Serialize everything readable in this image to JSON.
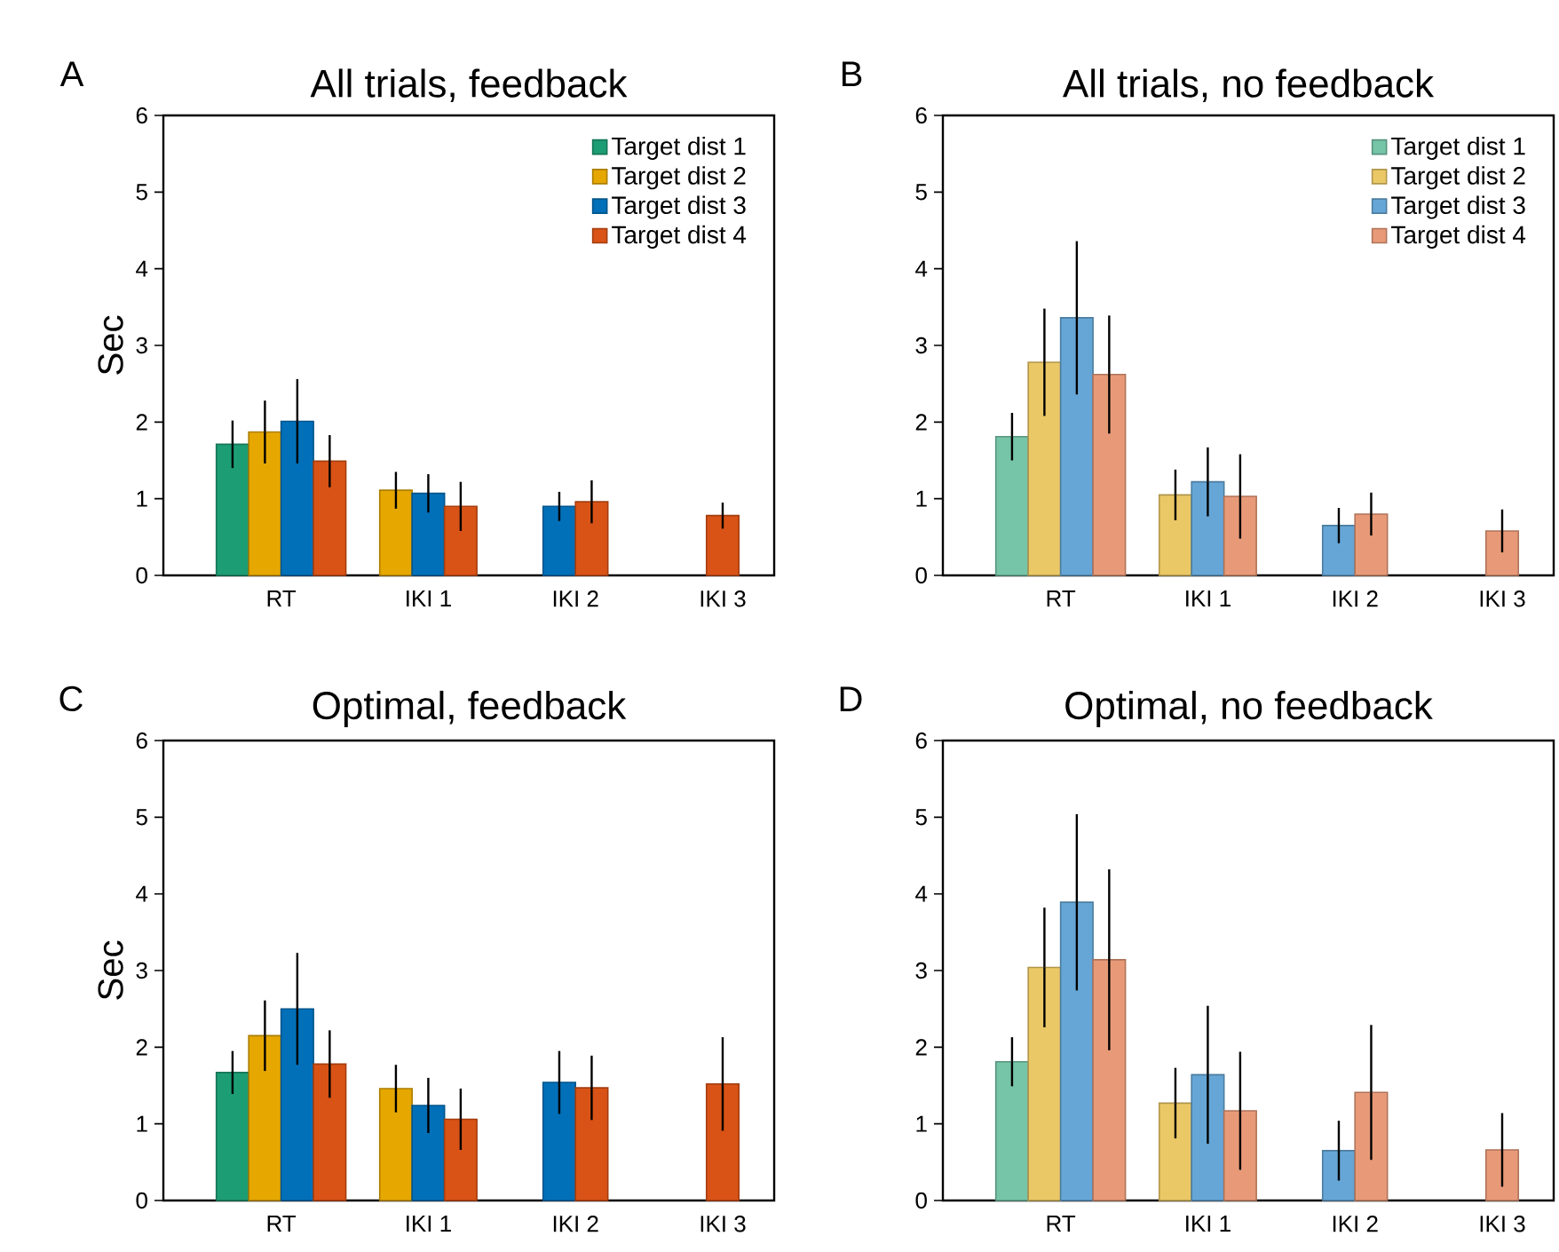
{
  "chart_data": [
    {
      "type": "bar",
      "title": "All trials, feedback",
      "ylabel": "Sec",
      "annotations": [
        "A"
      ],
      "categories": [
        "RT",
        "IKI 1",
        "IKI 2",
        "IKI 3"
      ],
      "ylim": [
        0,
        6
      ],
      "yticks": [
        0,
        1,
        2,
        3,
        4,
        5,
        6
      ],
      "legend": "top right",
      "series": [
        {
          "name": "Target dist 1",
          "color": "#1d9d74",
          "values": [
            1.71,
            null,
            null,
            null
          ],
          "errors": [
            0.31,
            null,
            null,
            null
          ]
        },
        {
          "name": "Target dist 2",
          "color": "#e6a800",
          "values": [
            1.87,
            1.11,
            null,
            null
          ],
          "errors": [
            0.41,
            0.24,
            null,
            null
          ]
        },
        {
          "name": "Target dist 3",
          "color": "#0170b9",
          "values": [
            2.01,
            1.07,
            0.9,
            null
          ],
          "errors": [
            0.55,
            0.25,
            0.19,
            null
          ]
        },
        {
          "name": "Target dist 4",
          "color": "#d95316",
          "values": [
            1.49,
            0.9,
            0.96,
            0.78
          ],
          "errors": [
            0.34,
            0.32,
            0.28,
            0.17
          ]
        }
      ]
    },
    {
      "type": "bar",
      "title": "All trials, no feedback",
      "annotations": [
        "B"
      ],
      "categories": [
        "RT",
        "IKI 1",
        "IKI 2",
        "IKI 3"
      ],
      "ylim": [
        0,
        6
      ],
      "yticks": [
        0,
        1,
        2,
        3,
        4,
        5,
        6
      ],
      "legend": "top right",
      "series": [
        {
          "name": "Target dist 1",
          "color": "#76c5a8",
          "values": [
            1.81,
            null,
            null,
            null
          ],
          "errors": [
            0.31,
            null,
            null,
            null
          ]
        },
        {
          "name": "Target dist 2",
          "color": "#ebc866",
          "values": [
            2.78,
            1.05,
            null,
            null
          ],
          "errors": [
            0.7,
            0.33,
            null,
            null
          ]
        },
        {
          "name": "Target dist 3",
          "color": "#66a6d6",
          "values": [
            3.36,
            1.22,
            0.65,
            null
          ],
          "errors": [
            1.0,
            0.45,
            0.23,
            null
          ]
        },
        {
          "name": "Target dist 4",
          "color": "#e89a78",
          "values": [
            2.62,
            1.03,
            0.8,
            0.58
          ],
          "errors": [
            0.77,
            0.55,
            0.28,
            0.28
          ]
        }
      ]
    },
    {
      "type": "bar",
      "title": "Optimal, feedback",
      "ylabel": "Sec",
      "annotations": [
        "C"
      ],
      "categories": [
        "RT",
        "IKI 1",
        "IKI 2",
        "IKI 3"
      ],
      "ylim": [
        0,
        6
      ],
      "yticks": [
        0,
        1,
        2,
        3,
        4,
        5,
        6
      ],
      "series": [
        {
          "color": "#1d9d74",
          "values": [
            1.67,
            null,
            null,
            null
          ],
          "errors": [
            0.28,
            null,
            null,
            null
          ]
        },
        {
          "color": "#e6a800",
          "values": [
            2.15,
            1.46,
            null,
            null
          ],
          "errors": [
            0.46,
            0.31,
            null,
            null
          ]
        },
        {
          "color": "#0170b9",
          "values": [
            2.5,
            1.24,
            1.54,
            null
          ],
          "errors": [
            0.73,
            0.36,
            0.41,
            null
          ]
        },
        {
          "color": "#d95316",
          "values": [
            1.78,
            1.06,
            1.47,
            1.52
          ],
          "errors": [
            0.44,
            0.4,
            0.42,
            0.61
          ]
        }
      ]
    },
    {
      "type": "bar",
      "title": "Optimal, no feedback",
      "annotations": [
        "D"
      ],
      "categories": [
        "RT",
        "IKI 1",
        "IKI 2",
        "IKI 3"
      ],
      "ylim": [
        0,
        6
      ],
      "yticks": [
        0,
        1,
        2,
        3,
        4,
        5,
        6
      ],
      "series": [
        {
          "color": "#76c5a8",
          "values": [
            1.81,
            null,
            null,
            null
          ],
          "errors": [
            0.32,
            null,
            null,
            null
          ]
        },
        {
          "color": "#ebc866",
          "values": [
            3.04,
            1.27,
            null,
            null
          ],
          "errors": [
            0.78,
            0.46,
            null,
            null
          ]
        },
        {
          "color": "#66a6d6",
          "values": [
            3.89,
            1.64,
            0.65,
            null
          ],
          "errors": [
            1.15,
            0.9,
            0.39,
            null
          ]
        },
        {
          "color": "#e89a78",
          "values": [
            3.14,
            1.17,
            1.41,
            0.66
          ],
          "errors": [
            1.18,
            0.77,
            0.88,
            0.48
          ]
        }
      ]
    }
  ]
}
